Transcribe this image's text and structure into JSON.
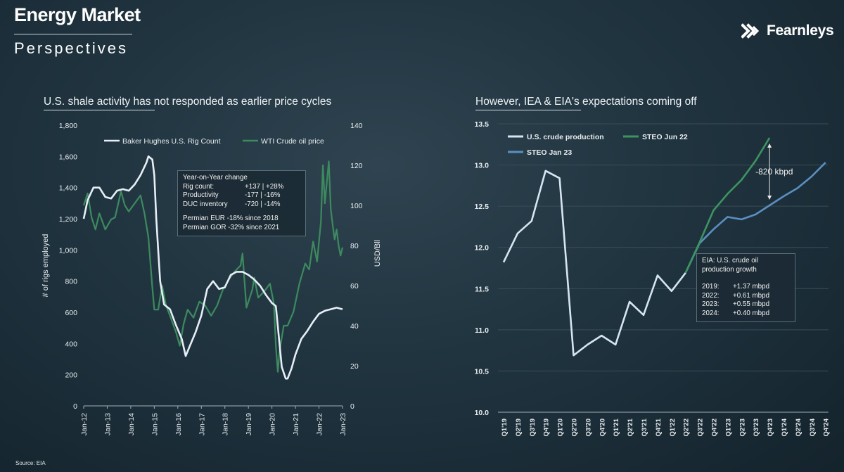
{
  "header": {
    "title": "Energy Market",
    "subtitle": "Perspectives",
    "logo_text": "Fearnleys"
  },
  "source": "Source: EIA",
  "left_panel": {
    "title": "U.S. shale activity has not responded as earlier price cycles",
    "info_box": {
      "heading": "Year-on-Year change",
      "rows": [
        {
          "label": "Rig count:",
          "value": "+137 | +28%"
        },
        {
          "label": "Productivity",
          "value": "-177 | -16%"
        },
        {
          "label": "DUC inventory",
          "value": "-720 | -14%"
        }
      ],
      "notes": [
        "Permian EUR -18% since 2018",
        "Permian GOR -32% since 2021"
      ]
    }
  },
  "right_panel": {
    "title": "However, IEA & EIA's expectations coming off",
    "annotation": "-820 kbpd",
    "info_box": {
      "heading": "EIA: U.S. crude oil production growth",
      "rows": [
        {
          "label": "2019:",
          "value": "+1.37 mbpd"
        },
        {
          "label": "2022:",
          "value": "+0.61 mbpd"
        },
        {
          "label": "2023:",
          "value": "+0.55 mbpd"
        },
        {
          "label": "2024:",
          "value": "+0.40 mbpd"
        }
      ]
    }
  },
  "colors": {
    "rig_count": "#e6eef6",
    "wti": "#3d8a5f",
    "us_production": "#d7e5f3",
    "steo_jun22": "#3e9360",
    "steo_jan23": "#5a8fc0",
    "axis_text": "#e8edf0",
    "gridline": "#3a4c56"
  },
  "chart_data": [
    {
      "type": "line",
      "xlabel": "",
      "ylabel": "# of rigs employed",
      "y2label": "USD/Bll",
      "ylim": [
        0,
        1800
      ],
      "y2lim": [
        0,
        140
      ],
      "yticks": [
        "0",
        "200",
        "400",
        "600",
        "800",
        "1,000",
        "1,200",
        "1,400",
        "1,600",
        "1,800"
      ],
      "y2ticks": [
        "0",
        "20",
        "40",
        "60",
        "80",
        "100",
        "120",
        "140"
      ],
      "x_tick_labels": [
        "Jan-12",
        "Jan-13",
        "Jan-14",
        "Jan-15",
        "Jan-16",
        "Jan-17",
        "Jan-18",
        "Jan-19",
        "Jan-20",
        "Jan-21",
        "Jan-22",
        "Jan-23"
      ],
      "x_range": [
        "Jan-12",
        "Jan-23"
      ],
      "legend_position": "top",
      "series": [
        {
          "name": "Baker Hughes U.S. Rig Count",
          "axis": "left",
          "points": [
            [
              "Jan-12",
              1200
            ],
            [
              "Mar-12",
              1320
            ],
            [
              "Jun-12",
              1400
            ],
            [
              "Sep-12",
              1400
            ],
            [
              "Dec-12",
              1340
            ],
            [
              "Mar-13",
              1330
            ],
            [
              "Jun-13",
              1380
            ],
            [
              "Sep-13",
              1390
            ],
            [
              "Dec-13",
              1380
            ],
            [
              "Mar-14",
              1420
            ],
            [
              "Jun-14",
              1480
            ],
            [
              "Sep-14",
              1560
            ],
            [
              "Oct-14",
              1600
            ],
            [
              "Dec-14",
              1580
            ],
            [
              "Jan-15",
              1480
            ],
            [
              "Feb-15",
              1200
            ],
            [
              "Mar-15",
              1000
            ],
            [
              "Apr-15",
              800
            ],
            [
              "Jun-15",
              650
            ],
            [
              "Sep-15",
              620
            ],
            [
              "Dec-15",
              520
            ],
            [
              "Mar-16",
              430
            ],
            [
              "May-16",
              320
            ],
            [
              "Jul-16",
              380
            ],
            [
              "Oct-16",
              470
            ],
            [
              "Jan-17",
              580
            ],
            [
              "Apr-17",
              750
            ],
            [
              "Jul-17",
              800
            ],
            [
              "Oct-17",
              750
            ],
            [
              "Jan-18",
              760
            ],
            [
              "Apr-18",
              840
            ],
            [
              "Jul-18",
              860
            ],
            [
              "Oct-18",
              860
            ],
            [
              "Jan-19",
              840
            ],
            [
              "Apr-19",
              810
            ],
            [
              "Jul-19",
              770
            ],
            [
              "Oct-19",
              710
            ],
            [
              "Jan-20",
              660
            ],
            [
              "Mar-20",
              640
            ],
            [
              "May-20",
              380
            ],
            [
              "Jun-20",
              250
            ],
            [
              "Aug-20",
              175
            ],
            [
              "Sep-20",
              175
            ],
            [
              "Nov-20",
              240
            ],
            [
              "Jan-21",
              330
            ],
            [
              "Apr-21",
              430
            ],
            [
              "Jul-21",
              480
            ],
            [
              "Oct-21",
              540
            ],
            [
              "Jan-22",
              590
            ],
            [
              "Apr-22",
              610
            ],
            [
              "Jul-22",
              620
            ],
            [
              "Oct-22",
              630
            ],
            [
              "Jan-23",
              620
            ]
          ]
        },
        {
          "name": "WTI Crude oil price",
          "axis": "right",
          "points": [
            [
              "Jan-12",
              100
            ],
            [
              "Mar-12",
              106
            ],
            [
              "May-12",
              94
            ],
            [
              "Jul-12",
              88
            ],
            [
              "Sep-12",
              96
            ],
            [
              "Dec-12",
              88
            ],
            [
              "Mar-13",
              93
            ],
            [
              "May-13",
              94
            ],
            [
              "Aug-13",
              107
            ],
            [
              "Oct-13",
              100
            ],
            [
              "Dec-13",
              97
            ],
            [
              "Mar-14",
              101
            ],
            [
              "Jun-14",
              105
            ],
            [
              "Aug-14",
              96
            ],
            [
              "Oct-14",
              84
            ],
            [
              "Dec-14",
              59
            ],
            [
              "Jan-15",
              48
            ],
            [
              "Mar-15",
              48
            ],
            [
              "May-15",
              60
            ],
            [
              "Jul-15",
              50
            ],
            [
              "Sep-15",
              45
            ],
            [
              "Dec-15",
              37
            ],
            [
              "Feb-16",
              30
            ],
            [
              "Apr-16",
              41
            ],
            [
              "Jun-16",
              48
            ],
            [
              "Sep-16",
              44
            ],
            [
              "Dec-16",
              52
            ],
            [
              "Mar-17",
              50
            ],
            [
              "Jun-17",
              45
            ],
            [
              "Sep-17",
              50
            ],
            [
              "Dec-17",
              58
            ],
            [
              "Mar-18",
              63
            ],
            [
              "Jun-18",
              67
            ],
            [
              "Sep-18",
              70
            ],
            [
              "Oct-18",
              76
            ],
            [
              "Dec-18",
              49
            ],
            [
              "Mar-19",
              58
            ],
            [
              "Apr-19",
              64
            ],
            [
              "Jun-19",
              54
            ],
            [
              "Sep-19",
              57
            ],
            [
              "Dec-19",
              61
            ],
            [
              "Feb-20",
              51
            ],
            [
              "Mar-20",
              30
            ],
            [
              "Apr-20",
              17
            ],
            [
              "May-20",
              28
            ],
            [
              "Jul-20",
              40
            ],
            [
              "Sep-20",
              40
            ],
            [
              "Dec-20",
              47
            ],
            [
              "Mar-21",
              61
            ],
            [
              "Jun-21",
              71
            ],
            [
              "Aug-21",
              68
            ],
            [
              "Oct-21",
              82
            ],
            [
              "Dec-21",
              72
            ],
            [
              "Feb-22",
              92
            ],
            [
              "Mar-22",
              120
            ],
            [
              "Apr-22",
              101
            ],
            [
              "Jun-22",
              122
            ],
            [
              "Jul-22",
              98
            ],
            [
              "Aug-22",
              90
            ],
            [
              "Sep-22",
              83
            ],
            [
              "Oct-22",
              88
            ],
            [
              "Nov-22",
              80
            ],
            [
              "Dec-22",
              75
            ],
            [
              "Jan-23",
              79
            ]
          ]
        }
      ]
    },
    {
      "type": "line",
      "ylim": [
        10.0,
        13.5
      ],
      "yticks": [
        "10.0",
        "10.5",
        "11.0",
        "11.5",
        "12.0",
        "12.5",
        "13.0",
        "13.5"
      ],
      "categories": [
        "Q1'19",
        "Q2'19",
        "Q3'19",
        "Q4'19",
        "Q1'20",
        "Q2'20",
        "Q3'20",
        "Q4'20",
        "Q1'21",
        "Q2'21",
        "Q3'21",
        "Q4'21",
        "Q1'22",
        "Q2'22",
        "Q3'22",
        "Q4'22",
        "Q1'23",
        "Q2'23",
        "Q3'23",
        "Q4'23",
        "Q1'24",
        "Q2'24",
        "Q3'24",
        "Q4'24"
      ],
      "legend_position": "top-left",
      "series": [
        {
          "name": "U.S. crude production",
          "values": [
            11.82,
            12.17,
            12.32,
            12.93,
            12.84,
            10.69,
            10.82,
            10.93,
            10.82,
            11.34,
            11.18,
            11.66,
            11.47,
            11.69,
            null,
            null,
            null,
            null,
            null,
            null,
            null,
            null,
            null,
            null
          ]
        },
        {
          "name": "STEO Jun 22",
          "values": [
            null,
            null,
            null,
            null,
            null,
            null,
            null,
            null,
            null,
            null,
            null,
            null,
            null,
            11.69,
            12.06,
            12.45,
            12.65,
            12.82,
            13.05,
            13.33,
            null,
            null,
            null,
            null
          ]
        },
        {
          "name": "STEO Jan 23",
          "values": [
            null,
            null,
            null,
            null,
            null,
            null,
            null,
            null,
            null,
            null,
            null,
            null,
            null,
            11.69,
            12.05,
            12.22,
            12.37,
            12.34,
            12.4,
            12.51,
            12.62,
            12.72,
            12.86,
            13.03
          ]
        }
      ]
    }
  ]
}
